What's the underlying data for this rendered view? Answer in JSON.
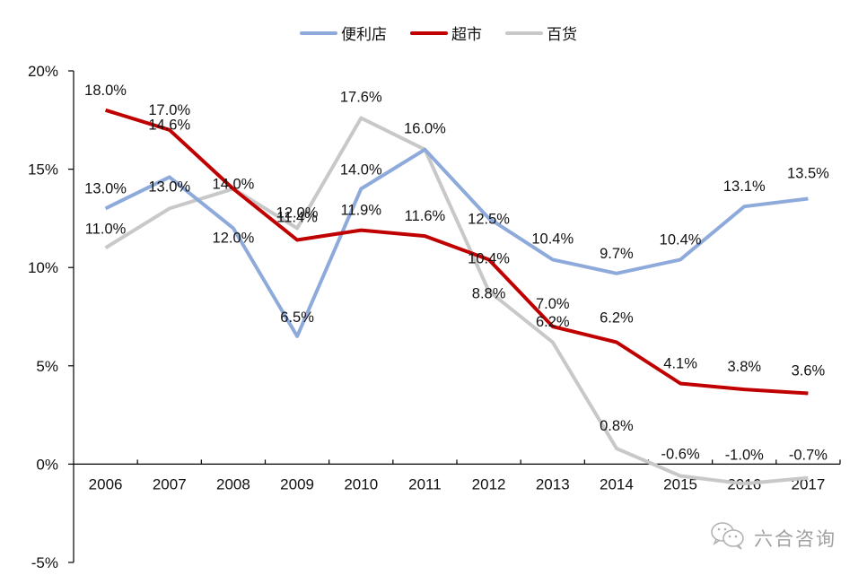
{
  "legend": {
    "items": [
      {
        "label": "便利店",
        "color": "#8eaadb"
      },
      {
        "label": "超市",
        "color": "#c00000"
      },
      {
        "label": "百货",
        "color": "#c8c8c8"
      }
    ]
  },
  "watermark": {
    "text": "六合咨询",
    "icon": "wechat-icon"
  },
  "chart_data": {
    "type": "line",
    "title": "",
    "xlabel": "",
    "ylabel": "",
    "categories": [
      "2006",
      "2007",
      "2008",
      "2009",
      "2010",
      "2011",
      "2012",
      "2013",
      "2014",
      "2015",
      "2016",
      "2017"
    ],
    "ylim": [
      -5,
      20
    ],
    "yticks": [
      -5,
      0,
      5,
      10,
      15,
      20
    ],
    "ytick_labels": [
      "-5%",
      "0%",
      "5%",
      "10%",
      "15%",
      "20%"
    ],
    "grid": false,
    "legend_position": "top-center",
    "series": [
      {
        "name": "便利店",
        "color": "#8eaadb",
        "values": [
          13.0,
          14.6,
          12.0,
          6.5,
          14.0,
          16.0,
          12.5,
          10.4,
          9.7,
          10.4,
          13.1,
          13.5
        ],
        "labels": [
          "13.0%",
          "14.6%",
          "12.0%",
          "6.5%",
          "14.0%",
          "16.0%",
          "12.5%",
          "10.4%",
          "9.7%",
          "10.4%",
          "13.1%",
          "13.5%"
        ]
      },
      {
        "name": "超市",
        "color": "#c00000",
        "values": [
          18.0,
          17.0,
          14.0,
          11.4,
          11.9,
          11.6,
          10.4,
          7.0,
          6.2,
          4.1,
          3.8,
          3.6
        ],
        "labels": [
          "18.0%",
          "17.0%",
          "14.0%",
          "11.4%",
          "11.9%",
          "11.6%",
          "10.4%",
          "7.0%",
          "6.2%",
          "4.1%",
          "3.8%",
          "3.6%"
        ]
      },
      {
        "name": "百货",
        "color": "#c8c8c8",
        "values": [
          11.0,
          13.0,
          14.0,
          12.0,
          17.6,
          16.0,
          8.8,
          6.2,
          0.8,
          -0.6,
          -1.0,
          -0.7
        ],
        "labels": [
          "11.0%",
          "13.0%",
          "14.0%",
          "12.0%",
          "17.6%",
          "16.0%",
          "8.8%",
          "6.2%",
          "0.8%",
          "-0.6%",
          "-1.0%",
          "-0.7%"
        ]
      }
    ]
  }
}
